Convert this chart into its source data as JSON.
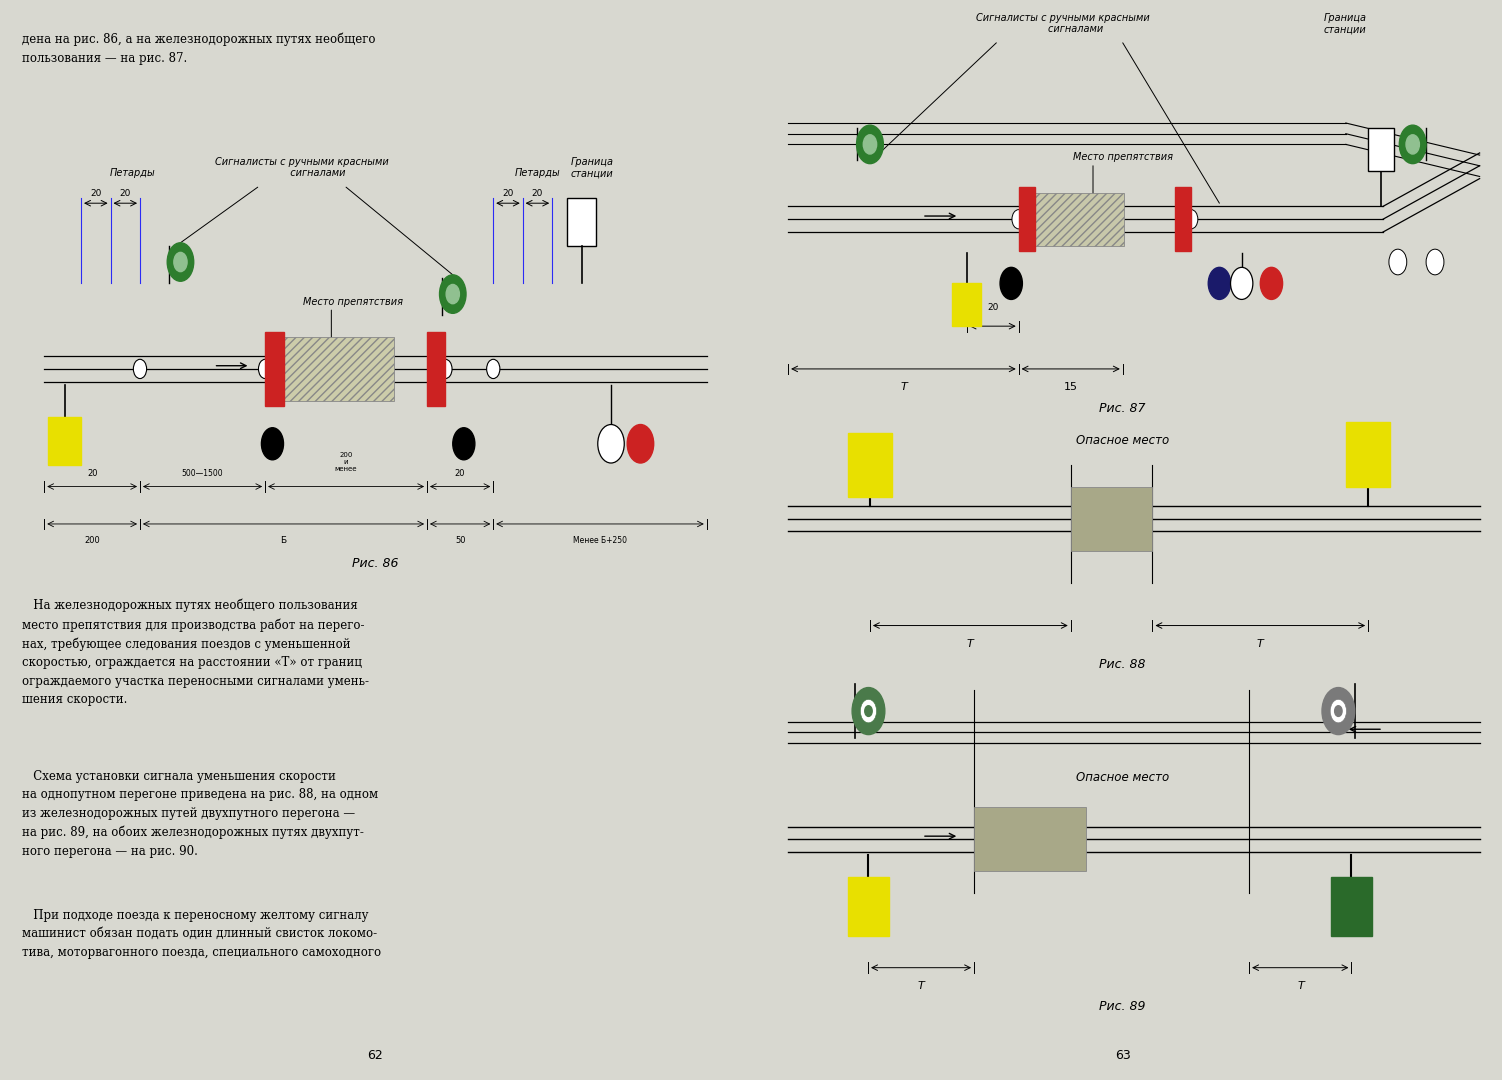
{
  "bg_color": "#d8d8d0",
  "page_color": "#ffffff",
  "left_page": {
    "top_text": "дена на рис. 86, а на железнодорожных путях необщего\nпользования — на рис. 87.",
    "fig86_label": "Рис. 86",
    "petardy_label": "Петарды",
    "signalers_label": "Сигналисты с ручными красными\n          сигналами",
    "boundary_label": "Граница\nстанции",
    "obstacle_label": "Место препятствия",
    "body_text": "   На железнодорожных путях необщего пользования\nместо препятствия для производства работ на перего-\nнах, требующее следования поездов с уменьшенной\nскоростью, ограждается на расстоянии «Т» от границ\nограждаемого участка переносными сигналами умень-\nшения скорости.",
    "body_text2": "   Схема установки сигнала уменьшения скорости\nна однопутном перегоне приведена на рис. 88, на одном\nиз железнодорожных путей двухпутного перегона —\nна рис. 89, на обоих железнодорожных путях двухпут-\nного перегона — на рис. 90.",
    "body_text3": "   При подходе поезда к переносному желтому сигналу\nмашинист обязан подать один длинный свисток локомо-\nтива, моторвагонного поезда, специального самоходного",
    "page_num": "62"
  },
  "right_page": {
    "fig87_label": "Рис. 87",
    "fig88_label": "Рис. 88",
    "fig89_label": "Рис. 89",
    "signalers_label": "Сигналисты с ручными красными\n        сигналами",
    "boundary_label": "Граница\nстанции",
    "obstacle_label87": "Место препятствия",
    "obstacle_label88": "Опасное место",
    "obstacle_label89": "Опасное место",
    "page_num": "63"
  }
}
